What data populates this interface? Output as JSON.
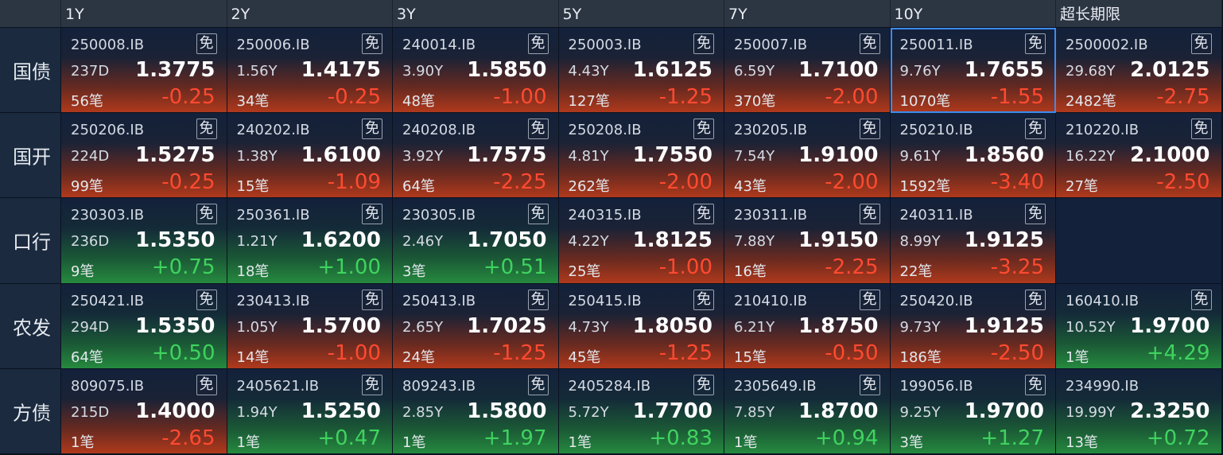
{
  "header": {
    "columns": [
      "1Y",
      "2Y",
      "3Y",
      "5Y",
      "7Y",
      "10Y",
      "超长期限"
    ]
  },
  "selected": {
    "row": 0,
    "col": 5
  },
  "rows": [
    {
      "label": "国债",
      "cells": [
        {
          "code": "250008.IB",
          "tag": "免",
          "term": "237D",
          "yield": "1.3775",
          "count": "56笔",
          "change": "-0.25"
        },
        {
          "code": "250006.IB",
          "tag": "免",
          "term": "1.56Y",
          "yield": "1.4175",
          "count": "34笔",
          "change": "-0.25"
        },
        {
          "code": "240014.IB",
          "tag": "免",
          "term": "3.90Y",
          "yield": "1.5850",
          "count": "48笔",
          "change": "-1.00"
        },
        {
          "code": "250003.IB",
          "tag": "免",
          "term": "4.43Y",
          "yield": "1.6125",
          "count": "127笔",
          "change": "-1.25"
        },
        {
          "code": "250007.IB",
          "tag": "免",
          "term": "6.59Y",
          "yield": "1.7100",
          "count": "370笔",
          "change": "-2.00"
        },
        {
          "code": "250011.IB",
          "tag": "免",
          "term": "9.76Y",
          "yield": "1.7655",
          "count": "1070笔",
          "change": "-1.55"
        },
        {
          "code": "2500002.IB",
          "tag": "免",
          "term": "29.68Y",
          "yield": "2.0125",
          "count": "2482笔",
          "change": "-2.75"
        }
      ]
    },
    {
      "label": "国开",
      "cells": [
        {
          "code": "250206.IB",
          "tag": "免",
          "term": "224D",
          "yield": "1.5275",
          "count": "99笔",
          "change": "-0.25"
        },
        {
          "code": "240202.IB",
          "tag": "免",
          "term": "1.38Y",
          "yield": "1.6100",
          "count": "15笔",
          "change": "-1.09"
        },
        {
          "code": "240208.IB",
          "tag": "免",
          "term": "3.92Y",
          "yield": "1.7575",
          "count": "64笔",
          "change": "-2.25"
        },
        {
          "code": "250208.IB",
          "tag": "免",
          "term": "4.81Y",
          "yield": "1.7550",
          "count": "262笔",
          "change": "-2.00"
        },
        {
          "code": "230205.IB",
          "tag": "免",
          "term": "7.54Y",
          "yield": "1.9100",
          "count": "43笔",
          "change": "-2.00"
        },
        {
          "code": "250210.IB",
          "tag": "免",
          "term": "9.61Y",
          "yield": "1.8560",
          "count": "1592笔",
          "change": "-3.40"
        },
        {
          "code": "210220.IB",
          "tag": "免",
          "term": "16.22Y",
          "yield": "2.1000",
          "count": "27笔",
          "change": "-2.50"
        }
      ]
    },
    {
      "label": "口行",
      "cells": [
        {
          "code": "230303.IB",
          "tag": "免",
          "term": "236D",
          "yield": "1.5350",
          "count": "9笔",
          "change": "+0.75"
        },
        {
          "code": "250361.IB",
          "tag": "免",
          "term": "1.21Y",
          "yield": "1.6200",
          "count": "18笔",
          "change": "+1.00"
        },
        {
          "code": "230305.IB",
          "tag": "免",
          "term": "2.46Y",
          "yield": "1.7050",
          "count": "3笔",
          "change": "+0.51"
        },
        {
          "code": "240315.IB",
          "tag": "免",
          "term": "4.22Y",
          "yield": "1.8125",
          "count": "25笔",
          "change": "-1.00"
        },
        {
          "code": "230311.IB",
          "tag": "免",
          "term": "7.88Y",
          "yield": "1.9150",
          "count": "16笔",
          "change": "-2.25"
        },
        {
          "code": "240311.IB",
          "tag": "免",
          "term": "8.99Y",
          "yield": "1.9125",
          "count": "22笔",
          "change": "-3.25"
        },
        null
      ]
    },
    {
      "label": "农发",
      "cells": [
        {
          "code": "250421.IB",
          "tag": "免",
          "term": "294D",
          "yield": "1.5350",
          "count": "64笔",
          "change": "+0.50"
        },
        {
          "code": "230413.IB",
          "tag": "免",
          "term": "1.05Y",
          "yield": "1.5700",
          "count": "14笔",
          "change": "-1.00"
        },
        {
          "code": "250413.IB",
          "tag": "免",
          "term": "2.65Y",
          "yield": "1.7025",
          "count": "24笔",
          "change": "-1.25"
        },
        {
          "code": "250415.IB",
          "tag": "免",
          "term": "4.73Y",
          "yield": "1.8050",
          "count": "45笔",
          "change": "-1.25"
        },
        {
          "code": "210410.IB",
          "tag": "免",
          "term": "6.21Y",
          "yield": "1.8750",
          "count": "15笔",
          "change": "-0.50"
        },
        {
          "code": "250420.IB",
          "tag": "免",
          "term": "9.73Y",
          "yield": "1.9125",
          "count": "186笔",
          "change": "-2.50"
        },
        {
          "code": "160410.IB",
          "tag": "免",
          "term": "10.52Y",
          "yield": "1.9700",
          "count": "1笔",
          "change": "+4.29"
        }
      ]
    },
    {
      "label": "方债",
      "cells": [
        {
          "code": "809075.IB",
          "tag": "免",
          "term": "215D",
          "yield": "1.4000",
          "count": "1笔",
          "change": "-2.65"
        },
        {
          "code": "2405621.IB",
          "tag": "免",
          "term": "1.94Y",
          "yield": "1.5250",
          "count": "1笔",
          "change": "+0.47"
        },
        {
          "code": "809243.IB",
          "tag": "免",
          "term": "2.85Y",
          "yield": "1.5800",
          "count": "1笔",
          "change": "+1.97"
        },
        {
          "code": "2405284.IB",
          "tag": "免",
          "term": "5.72Y",
          "yield": "1.7700",
          "count": "1笔",
          "change": "+0.83"
        },
        {
          "code": "2305649.IB",
          "tag": "免",
          "term": "7.85Y",
          "yield": "1.8700",
          "count": "1笔",
          "change": "+0.94"
        },
        {
          "code": "199056.IB",
          "tag": "免",
          "term": "9.25Y",
          "yield": "1.9700",
          "count": "3笔",
          "change": "+1.27"
        },
        {
          "code": "234990.IB",
          "term": "19.99Y",
          "yield": "2.3250",
          "count": "13笔",
          "change": "+0.72"
        }
      ]
    }
  ]
}
